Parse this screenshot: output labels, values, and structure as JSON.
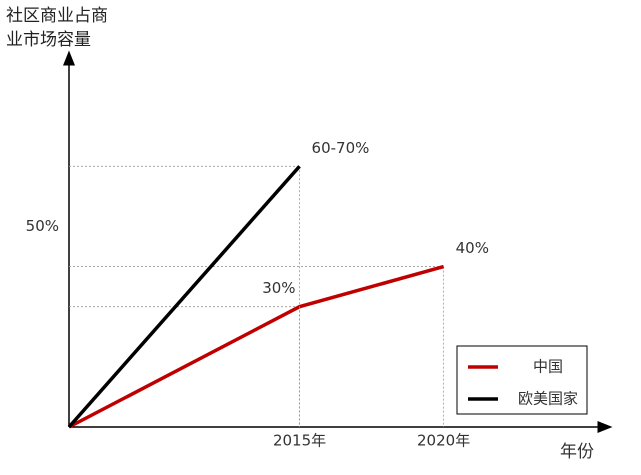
{
  "chart_data": {
    "type": "line",
    "y_label": "社区商业占商业市场容量",
    "x_label": "年份",
    "xlim": [
      2007,
      2025.6
    ],
    "ylim": [
      0,
      92
    ],
    "xticks": [
      {
        "value": 2015,
        "label": "2015年"
      },
      {
        "value": 2020,
        "label": "2020年"
      }
    ],
    "yticks": [
      {
        "value": 50,
        "label": "50%"
      }
    ],
    "legend": "bottom-right",
    "series": [
      {
        "name": "中国",
        "color": "#c00000",
        "x": [
          2007,
          2015,
          2020
        ],
        "values": [
          0,
          30,
          40
        ],
        "value_labels": [
          null,
          "30%",
          "40%"
        ]
      },
      {
        "name": "欧美国家",
        "color": "#000000",
        "x": [
          2007,
          2015
        ],
        "values": [
          0,
          65
        ],
        "value_labels": [
          null,
          "60-70%"
        ]
      }
    ]
  }
}
